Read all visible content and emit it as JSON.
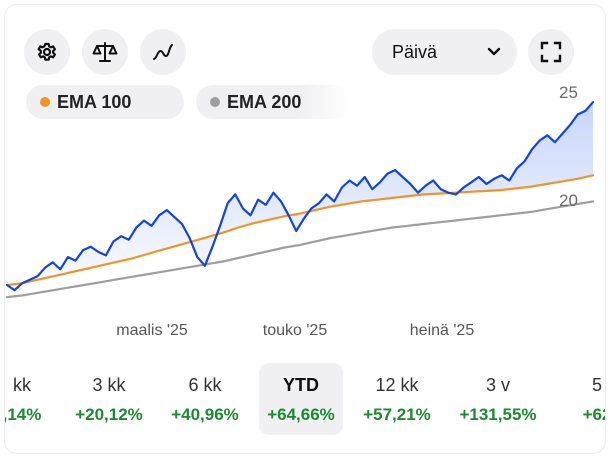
{
  "toolbar": {
    "settings_icon": "gear-icon",
    "compare_icon": "scale-icon",
    "chart_type_icon": "line-chart-icon",
    "fullscreen_icon": "fullscreen-icon"
  },
  "interval": {
    "selected": "Päivä"
  },
  "indicators": [
    {
      "label": "EMA 100",
      "color": "#f0932b"
    },
    {
      "label": "EMA 200",
      "color": "#9e9e9e"
    }
  ],
  "chart_data": {
    "type": "line",
    "y_ticks": [
      "25",
      "20"
    ],
    "x_tick_labels": [
      "maalis '25",
      "touko '25",
      "heinä '25"
    ],
    "colors": {
      "price": "#1144dd",
      "ema100": "#f0932b",
      "ema200": "#9e9e9e"
    },
    "ylim": [
      12.5,
      26
    ],
    "series": [
      {
        "key": "price",
        "values": [
          14.8,
          14.5,
          14.9,
          15.1,
          15.3,
          15.8,
          16.1,
          15.7,
          16.4,
          16.2,
          16.8,
          17.0,
          16.7,
          16.5,
          17.3,
          17.6,
          17.4,
          18.1,
          18.5,
          18.2,
          18.8,
          19.1,
          18.7,
          18.3,
          17.5,
          16.4,
          15.9,
          17.0,
          18.2,
          19.5,
          20.0,
          19.2,
          18.8,
          19.7,
          19.4,
          20.1,
          19.6,
          18.8,
          17.9,
          18.6,
          19.2,
          19.5,
          20.0,
          19.6,
          20.4,
          20.8,
          20.5,
          21.0,
          20.3,
          20.7,
          21.2,
          21.4,
          21.0,
          20.6,
          20.1,
          20.5,
          20.8,
          20.3,
          20.1,
          20.0,
          20.4,
          20.7,
          21.0,
          20.6,
          20.9,
          21.1,
          20.8,
          21.5,
          21.9,
          22.6,
          23.1,
          23.4,
          23.0,
          23.5,
          24.0,
          24.6,
          24.8,
          25.3
        ]
      },
      {
        "key": "ema100",
        "values": [
          14.8,
          14.9,
          15.1,
          15.3,
          15.5,
          15.7,
          15.9,
          16.1,
          16.3,
          16.55,
          16.8,
          17.05,
          17.3,
          17.55,
          17.8,
          18.1,
          18.35,
          18.55,
          18.75,
          18.9,
          19.1,
          19.3,
          19.45,
          19.6,
          19.7,
          19.8,
          19.9,
          20.0,
          20.05,
          20.1,
          20.15,
          20.2,
          20.25,
          20.35,
          20.45,
          20.6,
          20.75,
          20.9,
          21.1
        ]
      },
      {
        "key": "ema200",
        "values": [
          14.1,
          14.2,
          14.35,
          14.5,
          14.65,
          14.8,
          14.95,
          15.1,
          15.25,
          15.4,
          15.55,
          15.7,
          15.85,
          16.0,
          16.15,
          16.35,
          16.55,
          16.75,
          16.95,
          17.1,
          17.3,
          17.5,
          17.65,
          17.8,
          17.95,
          18.1,
          18.2,
          18.3,
          18.4,
          18.5,
          18.6,
          18.7,
          18.8,
          18.9,
          19.0,
          19.15,
          19.3,
          19.45,
          19.6
        ]
      }
    ]
  },
  "periods": [
    {
      "label": "kk",
      "value": ",14%",
      "active": false
    },
    {
      "label": "3 kk",
      "value": "+20,12%",
      "active": false
    },
    {
      "label": "6 kk",
      "value": "+40,96%",
      "active": false
    },
    {
      "label": "YTD",
      "value": "+64,66%",
      "active": true
    },
    {
      "label": "12 kk",
      "value": "+57,21%",
      "active": false
    },
    {
      "label": "3 v",
      "value": "+131,55%",
      "active": false
    },
    {
      "label": "5",
      "value": "+62",
      "active": false
    }
  ]
}
